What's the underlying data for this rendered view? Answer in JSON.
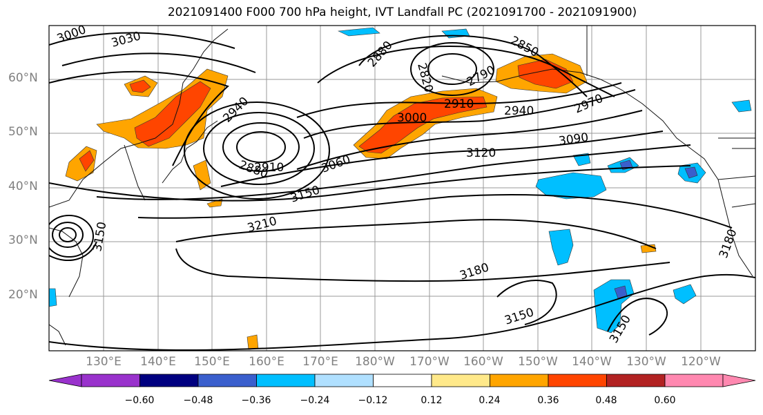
{
  "title": "2021091400 F000 700 hPa height, IVT Landfall PC (2021091700 - 2021091900)",
  "map": {
    "lat_labels": [
      "60°N",
      "50°N",
      "40°N",
      "30°N",
      "20°N"
    ],
    "lon_labels": [
      "130°E",
      "140°E",
      "150°E",
      "160°E",
      "170°E",
      "180°W",
      "170°W",
      "160°W",
      "150°W",
      "140°W",
      "130°W",
      "120°W"
    ],
    "contour_labels": [
      "3000",
      "3030",
      "2880",
      "2850",
      "2820",
      "2790",
      "2910",
      "2940",
      "2970",
      "3000",
      "2940",
      "2880",
      "2910",
      "3060",
      "3090",
      "3120",
      "3150",
      "3210",
      "3150",
      "3180",
      "3150",
      "3150",
      "3180"
    ],
    "colors": {
      "purple": "#9932cc",
      "navy": "#000080",
      "royal_blue": "#3a5fcd",
      "deep_sky_blue": "#00bfff",
      "light_blue": "#b0e0ff",
      "white": "#ffffff",
      "light_yellow": "#ffe98a",
      "orange": "#ffa500",
      "orange_red": "#ff4500",
      "firebrick": "#b22222",
      "pink": "#ff88b0"
    }
  },
  "colorbar": {
    "ticks": [
      "−0.60",
      "−0.48",
      "−0.36",
      "−0.24",
      "−0.12",
      "0.12",
      "0.24",
      "0.36",
      "0.48",
      "0.60"
    ],
    "colors": [
      "#9932cc",
      "#000080",
      "#3a5fcd",
      "#00bfff",
      "#b0e0ff",
      "#ffffff",
      "#ffe98a",
      "#ffa500",
      "#ff4500",
      "#b22222",
      "#ff88b0"
    ]
  }
}
